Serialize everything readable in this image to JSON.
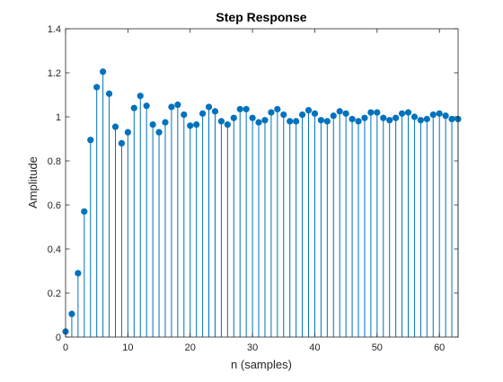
{
  "colors": {
    "stem": "#0072BD",
    "axis": "#262626",
    "background": "#ffffff"
  },
  "chart_data": {
    "type": "stem",
    "title": "Step Response",
    "xlabel": "n (samples)",
    "ylabel": "Amplitude",
    "xlim": [
      0,
      63
    ],
    "ylim": [
      0,
      1.4
    ],
    "xticks": [
      0,
      10,
      20,
      30,
      40,
      50,
      60
    ],
    "yticks": [
      0,
      0.2,
      0.4,
      0.6,
      0.8,
      1,
      1.2,
      1.4
    ],
    "xtick_labels": [
      "0",
      "10",
      "20",
      "30",
      "40",
      "50",
      "60"
    ],
    "ytick_labels": [
      "0",
      "0.2",
      "0.4",
      "0.6",
      "0.8",
      "1",
      "1.2",
      "1.4"
    ],
    "grid": false,
    "legend": "none",
    "series": [
      {
        "x": [
          0,
          1,
          2,
          3,
          4,
          5,
          6,
          7,
          8,
          9,
          10,
          11,
          12,
          13,
          14,
          15,
          16,
          17,
          18,
          19,
          20,
          21,
          22,
          23,
          24,
          25,
          26,
          27,
          28,
          29,
          30,
          31,
          32,
          33,
          34,
          35,
          36,
          37,
          38,
          39,
          40,
          41,
          42,
          43,
          44,
          45,
          46,
          47,
          48,
          49,
          50,
          51,
          52,
          53,
          54,
          55,
          56,
          57,
          58,
          59,
          60,
          61,
          62,
          63
        ],
        "y": [
          0.025,
          0.105,
          0.29,
          0.57,
          0.895,
          1.135,
          1.205,
          1.105,
          0.955,
          0.88,
          0.93,
          1.04,
          1.095,
          1.05,
          0.965,
          0.93,
          0.975,
          1.045,
          1.055,
          1.01,
          0.96,
          0.965,
          1.015,
          1.045,
          1.025,
          0.98,
          0.965,
          0.995,
          1.035,
          1.035,
          0.995,
          0.975,
          0.985,
          1.02,
          1.035,
          1.01,
          0.98,
          0.98,
          1.01,
          1.03,
          1.015,
          0.985,
          0.98,
          1.005,
          1.025,
          1.015,
          0.99,
          0.98,
          0.995,
          1.02,
          1.02,
          0.995,
          0.985,
          0.995,
          1.015,
          1.02,
          1.0,
          0.985,
          0.99,
          1.01,
          1.015,
          1.005,
          0.99,
          0.99
        ]
      }
    ]
  }
}
